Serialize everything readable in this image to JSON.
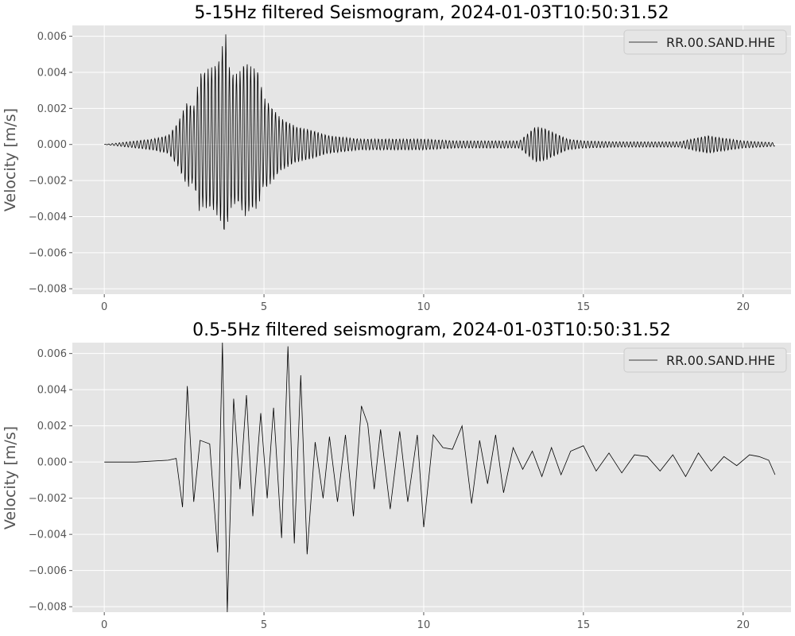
{
  "chart_data": [
    {
      "type": "line",
      "title": "5-15Hz filtered Seismogram, 2024-01-03T10:50:31.52",
      "xlabel": "",
      "ylabel": "Velocity [m/s]",
      "xlim": [
        -1,
        21.5
      ],
      "ylim": [
        -0.0083,
        0.0066
      ],
      "xticks": [
        0,
        5,
        10,
        15,
        20
      ],
      "xtick_labels": [
        "0",
        "5",
        "10",
        "15",
        "20"
      ],
      "yticks": [
        -0.008,
        -0.006,
        -0.004,
        -0.002,
        0.0,
        0.002,
        0.004,
        0.006
      ],
      "ytick_labels": [
        "−0.008",
        "−0.006",
        "−0.004",
        "−0.002",
        "0.000",
        "0.002",
        "0.004",
        "0.006"
      ],
      "grid": true,
      "legend_position": "top-right",
      "series": [
        {
          "name": "RR.00.SAND.HHE",
          "color": "#000000",
          "x": [
            0,
            1.0,
            1.5,
            2.0,
            2.3,
            2.6,
            2.8,
            3.0,
            3.2,
            3.4,
            3.6,
            3.8,
            3.9,
            4.0,
            4.2,
            4.4,
            4.6,
            4.8,
            5.0,
            5.2,
            5.5,
            6.0,
            6.5,
            7.0,
            8.0,
            9.0,
            10.0,
            11.0,
            12.0,
            13.0,
            13.5,
            13.8,
            14.5,
            15.0,
            16.0,
            17.0,
            18.0,
            18.9,
            19.2,
            20.0,
            21.0
          ],
          "y": [
            0,
            0.0002,
            0.0003,
            0.0005,
            0.0012,
            0.0024,
            0.0021,
            0.004,
            0.0042,
            0.0043,
            0.0048,
            0.0062,
            0.0045,
            0.004,
            0.0039,
            0.0047,
            0.0043,
            0.0042,
            0.0026,
            0.0022,
            0.0015,
            0.001,
            0.0008,
            0.0005,
            0.0003,
            0.0003,
            0.0003,
            0.0002,
            0.0002,
            0.0002,
            0.001,
            0.0009,
            0.0003,
            0.0002,
            0.00015,
            0.00015,
            0.00015,
            0.0005,
            0.0004,
            0.0002,
            0.0001
          ]
        }
      ]
    },
    {
      "type": "line",
      "title": "0.5-5Hz filtered seismogram, 2024-01-03T10:50:31.52",
      "xlabel": "",
      "ylabel": "Velocity [m/s]",
      "xlim": [
        -1,
        21.5
      ],
      "ylim": [
        -0.0083,
        0.0066
      ],
      "xticks": [
        0,
        5,
        10,
        15,
        20
      ],
      "xtick_labels": [
        "0",
        "5",
        "10",
        "15",
        "20"
      ],
      "yticks": [
        -0.008,
        -0.006,
        -0.004,
        -0.002,
        0.0,
        0.002,
        0.004,
        0.006
      ],
      "ytick_labels": [
        "−0.008",
        "−0.006",
        "−0.004",
        "−0.002",
        "0.000",
        "0.002",
        "0.004",
        "0.006"
      ],
      "grid": true,
      "legend_position": "top-right",
      "series": [
        {
          "name": "RR.00.SAND.HHE",
          "color": "#000000",
          "x": [
            0.0,
            1.0,
            2.0,
            2.25,
            2.45,
            2.6,
            2.8,
            3.0,
            3.3,
            3.55,
            3.7,
            3.85,
            4.05,
            4.25,
            4.45,
            4.65,
            4.9,
            5.1,
            5.3,
            5.55,
            5.75,
            5.95,
            6.15,
            6.35,
            6.6,
            6.85,
            7.05,
            7.3,
            7.55,
            7.8,
            8.05,
            8.25,
            8.45,
            8.65,
            8.95,
            9.25,
            9.5,
            9.8,
            10.0,
            10.3,
            10.6,
            10.9,
            11.2,
            11.5,
            11.75,
            12.0,
            12.25,
            12.5,
            12.8,
            13.1,
            13.4,
            13.7,
            14.0,
            14.3,
            14.6,
            15.0,
            15.4,
            15.8,
            16.2,
            16.6,
            17.0,
            17.4,
            17.8,
            18.2,
            18.6,
            19.0,
            19.4,
            19.8,
            20.2,
            20.5,
            20.8,
            21.0
          ],
          "y": [
            0.0,
            0.0,
            0.0001,
            0.0002,
            -0.0025,
            0.0042,
            -0.0022,
            0.0012,
            0.001,
            -0.005,
            0.0066,
            -0.0083,
            0.0035,
            -0.0015,
            0.0037,
            -0.003,
            0.0027,
            -0.002,
            0.003,
            -0.0042,
            0.0064,
            -0.0045,
            0.0048,
            -0.0051,
            0.0011,
            -0.002,
            0.0014,
            -0.0022,
            0.0015,
            -0.003,
            0.0031,
            0.0021,
            -0.0015,
            0.0018,
            -0.0026,
            0.0017,
            -0.0022,
            0.0015,
            -0.0036,
            0.0015,
            0.0008,
            0.0007,
            0.002,
            -0.0023,
            0.0012,
            -0.0012,
            0.0015,
            -0.0017,
            0.0008,
            -0.0004,
            0.0006,
            -0.0008,
            0.0008,
            -0.0007,
            0.0006,
            0.0009,
            -0.0005,
            0.0005,
            -0.0006,
            0.0004,
            0.0003,
            -0.0005,
            0.0004,
            -0.0008,
            0.0005,
            -0.0005,
            0.0003,
            -0.0002,
            0.0004,
            0.0003,
            0.0001,
            -0.0007
          ]
        }
      ]
    }
  ]
}
